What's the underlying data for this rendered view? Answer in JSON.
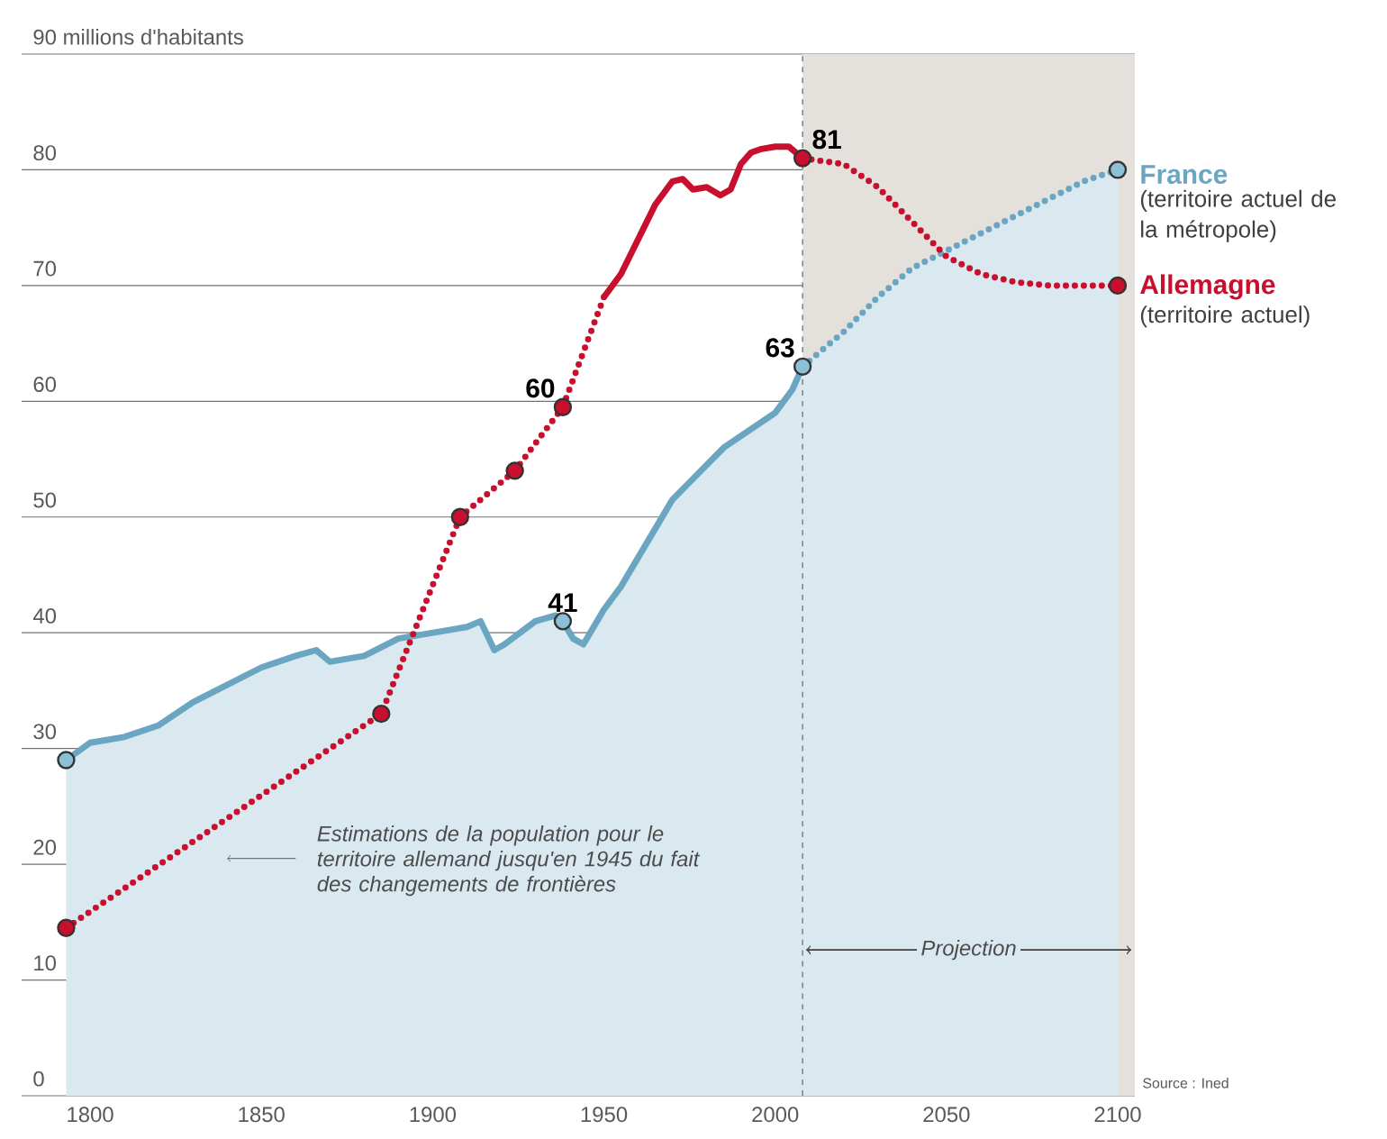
{
  "chart_data": {
    "type": "line",
    "xlim": [
      1780,
      2105
    ],
    "ylim": [
      0,
      90
    ],
    "xticks": [
      1800,
      1850,
      1900,
      1950,
      2000,
      2050,
      2100
    ],
    "yticks": [
      0,
      10,
      20,
      30,
      40,
      50,
      60,
      70,
      {
        "value": 90,
        "label": "90 millions d'habitants"
      },
      80
    ],
    "grid": "y",
    "bands": [
      {
        "axis": "x",
        "from": 2008,
        "to": 2105,
        "label": "Projection",
        "color": "#e4e0dc"
      }
    ],
    "ref_lines": [
      {
        "axis": "x",
        "value": 2008,
        "line_style": "dashed",
        "color": "#777777"
      }
    ],
    "series": [
      {
        "name": "France",
        "type": "area",
        "color": "#6aa5c2",
        "line_style": "solid",
        "x": [
          1793,
          1800,
          1810,
          1820,
          1830,
          1840,
          1850,
          1860,
          1866,
          1870,
          1880,
          1890,
          1900,
          1910,
          1914,
          1918,
          1921,
          1930,
          1936,
          1938,
          1941,
          1944,
          1946,
          1950,
          1955,
          1960,
          1965,
          1970,
          1975,
          1980,
          1985,
          1990,
          1995,
          2000,
          2005,
          2008
        ],
        "values": [
          29,
          30.5,
          31,
          32,
          34,
          35.5,
          37,
          38,
          38.5,
          37.5,
          38,
          39.5,
          40,
          40.5,
          41,
          38.5,
          39,
          41,
          41.5,
          41,
          39.5,
          39,
          40,
          42,
          44,
          46.5,
          49,
          51.5,
          53,
          54.5,
          56,
          57,
          58,
          59,
          61,
          63
        ]
      },
      {
        "type": "area",
        "color": "#6aa5c2",
        "line_style": "dotted",
        "x": [
          2008,
          2020,
          2030,
          2040,
          2050,
          2060,
          2070,
          2080,
          2090,
          2100
        ],
        "values": [
          63,
          66,
          69,
          71.5,
          73,
          74.5,
          76,
          77.5,
          79,
          80
        ]
      },
      {
        "color": "#c8102e",
        "line_style": "dotted",
        "x": [
          1793,
          1885,
          1908,
          1924,
          1938,
          1950
        ],
        "values": [
          14.5,
          33,
          50,
          54,
          59.5,
          69
        ]
      },
      {
        "name": "Allemagne",
        "color": "#c8102e",
        "line_style": "solid",
        "x": [
          1950,
          1955,
          1960,
          1965,
          1970,
          1973,
          1976,
          1980,
          1984,
          1987,
          1990,
          1993,
          1996,
          2000,
          2004,
          2008
        ],
        "values": [
          69,
          71,
          74,
          77,
          79,
          79.2,
          78.3,
          78.5,
          77.8,
          78.3,
          80.5,
          81.5,
          81.8,
          82,
          82,
          81
        ]
      },
      {
        "color": "#c8102e",
        "line_style": "dotted",
        "x": [
          2008,
          2020,
          2030,
          2040,
          2050,
          2060,
          2070,
          2080,
          2090,
          2100
        ],
        "values": [
          81,
          80.5,
          78.5,
          75.5,
          72.5,
          71,
          70.3,
          70,
          70,
          70
        ]
      },
      {
        "type": "scatter",
        "marker": "circle",
        "color": "#8cc0d6",
        "x": [
          1793,
          1938,
          2008,
          2100
        ],
        "values": [
          29,
          41,
          63,
          80
        ],
        "value_labels": [
          null,
          "41",
          "63",
          null
        ]
      },
      {
        "type": "scatter",
        "marker": "circle",
        "color": "#c8102e",
        "x": [
          1793,
          1885,
          1908,
          1924,
          1938,
          2008,
          2100
        ],
        "values": [
          14.5,
          33,
          50,
          54,
          59.5,
          81,
          70
        ],
        "value_labels": [
          null,
          null,
          null,
          null,
          "60",
          "81",
          null
        ]
      }
    ],
    "annotations": [
      "Estimations de la population pour le territoire allemand jusqu'en 1945 du fait des changements de frontières",
      "(territoire actuel de la métropole)",
      "(territoire actuel)",
      "Source : Ined"
    ]
  }
}
